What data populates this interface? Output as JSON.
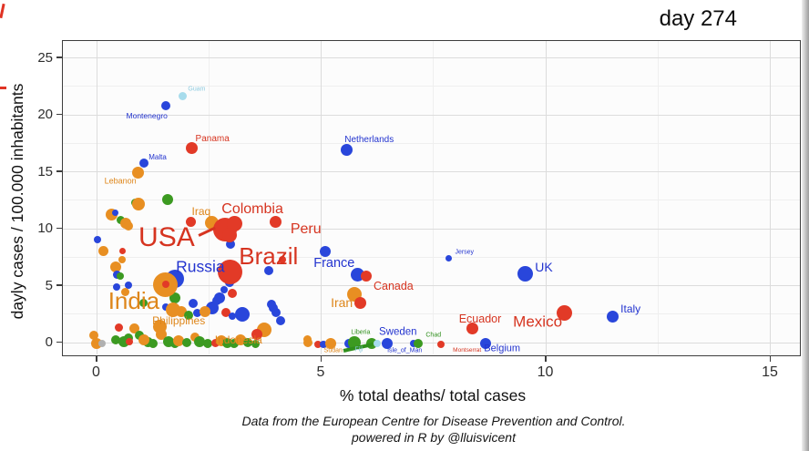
{
  "chart_data": {
    "type": "scatter",
    "title": "day 274",
    "xlabel": "% total deaths/ total cases",
    "ylabel": "dayly cases / 100.000 inhabitants",
    "caption_line1": "Data from the European Centre for Disease Prevention and Control.",
    "caption_line2": "powered in R by @lluisvicent",
    "xticks": [
      0,
      5,
      10,
      15
    ],
    "yticks": [
      0,
      5,
      10,
      15,
      20,
      25
    ],
    "xlim": [
      -0.76,
      15.7
    ],
    "ylim": [
      -1.25,
      26.5
    ],
    "grid": "major and minor, light gray on near-white panel",
    "legend_position": "none",
    "point_palette": {
      "r": "#e23a27",
      "b": "#2946db",
      "o": "#e88f22",
      "g": "#3c9a21",
      "y": "#a7dcec",
      "gy": "#b0b0b0"
    },
    "label_palette": {
      "r": "#d63420",
      "b": "#2334cf",
      "o": "#de861a",
      "g": "#2f8f1c",
      "y": "#8ecbe0",
      "gy": "#999999"
    },
    "named_points": [
      {
        "name": "Guam",
        "x": 1.93,
        "y": 21.6,
        "r": 4.5,
        "c": "y"
      },
      {
        "name": "Montenegro",
        "x": 1.55,
        "y": 20.76,
        "r": 5,
        "c": "b"
      },
      {
        "name": "Panama",
        "x": 2.12,
        "y": 17.08,
        "r": 6.5,
        "c": "r"
      },
      {
        "name": "Netherlands",
        "x": 5.57,
        "y": 16.92,
        "r": 6.5,
        "c": "b"
      },
      {
        "name": "Malta",
        "x": 1.07,
        "y": 15.72,
        "r": 5,
        "c": "b"
      },
      {
        "name": "Lebanon",
        "x": 0.94,
        "y": 14.92,
        "r": 6.5,
        "c": "o"
      },
      {
        "name": "Iraq",
        "x": 2.57,
        "y": 10.52,
        "r": 7.5,
        "c": "o"
      },
      {
        "name": "USA-Colombia-blob-1",
        "x": 2.87,
        "y": 9.88,
        "r": 13,
        "c": "r"
      },
      {
        "name": "USA-Colombia-blob-2",
        "x": 3.09,
        "y": 10.44,
        "r": 8.5,
        "c": "r"
      },
      {
        "name": "USA-Colombia-blob-3",
        "x": 2.98,
        "y": 9.4,
        "r": 8,
        "c": "r"
      },
      {
        "name": "Peru",
        "x": 4.0,
        "y": 10.6,
        "r": 6.5,
        "c": "r"
      },
      {
        "name": "Brazil",
        "x": 2.99,
        "y": 6.2,
        "r": 13.5,
        "c": "r"
      },
      {
        "name": "Russia",
        "x": 1.75,
        "y": 5.56,
        "r": 10,
        "c": "b"
      },
      {
        "name": "India",
        "x": 1.55,
        "y": 5.08,
        "r": 13.5,
        "c": "o"
      },
      {
        "name": "India-red-overlay",
        "x": 1.55,
        "y": 5.05,
        "r": 4,
        "c": "r"
      },
      {
        "name": "France-upper",
        "x": 5.1,
        "y": 7.96,
        "r": 6,
        "c": "b"
      },
      {
        "name": "France",
        "x": 5.83,
        "y": 5.96,
        "r": 7.5,
        "c": "b"
      },
      {
        "name": "Canada",
        "x": 6.01,
        "y": 5.8,
        "r": 6,
        "c": "r"
      },
      {
        "name": "Iran",
        "x": 5.75,
        "y": 4.2,
        "r": 8,
        "c": "o"
      },
      {
        "name": "near-Iran-red",
        "x": 5.89,
        "y": 3.48,
        "r": 6.5,
        "c": "r"
      },
      {
        "name": "Jersey",
        "x": 7.84,
        "y": 7.4,
        "r": 3.5,
        "c": "b"
      },
      {
        "name": "UK",
        "x": 9.56,
        "y": 6.04,
        "r": 8.5,
        "c": "b"
      },
      {
        "name": "Ecuador",
        "x": 8.37,
        "y": 1.24,
        "r": 6.5,
        "c": "r"
      },
      {
        "name": "Mexico",
        "x": 10.43,
        "y": 2.6,
        "r": 8.5,
        "c": "r"
      },
      {
        "name": "Italy",
        "x": 11.51,
        "y": 2.28,
        "r": 6.5,
        "c": "b"
      },
      {
        "name": "Belgium",
        "x": 8.67,
        "y": -0.12,
        "r": 6,
        "c": "b"
      },
      {
        "name": "Sweden",
        "x": 6.48,
        "y": -0.12,
        "r": 6,
        "c": "b"
      }
    ],
    "background_points": [
      [
        0.88,
        12.28,
        4.5,
        "g"
      ],
      [
        0.95,
        12.12,
        7,
        "o"
      ],
      [
        1.6,
        12.52,
        6,
        "g"
      ],
      [
        0.35,
        11.24,
        6.5,
        "o"
      ],
      [
        0.43,
        11.4,
        3.5,
        "b"
      ],
      [
        0.55,
        10.76,
        4.5,
        "g"
      ],
      [
        0.65,
        10.44,
        6,
        "o"
      ],
      [
        0.73,
        10.2,
        5,
        "o"
      ],
      [
        2.1,
        10.6,
        5.5,
        "r"
      ],
      [
        0.03,
        9.0,
        4,
        "b"
      ],
      [
        0.16,
        8.04,
        5.5,
        "o"
      ],
      [
        0.59,
        8.04,
        3.5,
        "r"
      ],
      [
        0.57,
        7.24,
        4,
        "o"
      ],
      [
        0.44,
        6.6,
        6,
        "o"
      ],
      [
        0.46,
        5.96,
        4.5,
        "b"
      ],
      [
        0.53,
        5.8,
        4,
        "g"
      ],
      [
        0.46,
        4.84,
        4,
        "b"
      ],
      [
        0.73,
        5.0,
        4,
        "b"
      ],
      [
        0.65,
        4.44,
        4.5,
        "o"
      ],
      [
        3.0,
        8.6,
        5,
        "b"
      ],
      [
        3.85,
        6.28,
        5,
        "b"
      ],
      [
        4.15,
        7.24,
        4,
        "r"
      ],
      [
        2.84,
        4.6,
        4,
        "b"
      ],
      [
        3.04,
        4.28,
        5,
        "r"
      ],
      [
        2.75,
        3.88,
        6,
        "b"
      ],
      [
        2.97,
        5.24,
        5,
        "b"
      ],
      [
        2.89,
        2.6,
        5,
        "r"
      ],
      [
        3.03,
        2.28,
        4,
        "b"
      ],
      [
        3.26,
        2.44,
        8,
        "b"
      ],
      [
        3.94,
        3.0,
        5,
        "b"
      ],
      [
        4.0,
        2.6,
        5,
        "b"
      ],
      [
        4.1,
        1.88,
        5,
        "b"
      ],
      [
        3.74,
        1.08,
        8,
        "o"
      ],
      [
        3.58,
        0.68,
        6,
        "r"
      ],
      [
        2.59,
        3.0,
        7,
        "b"
      ],
      [
        3.9,
        3.3,
        5,
        "b"
      ],
      [
        1.76,
        3.88,
        6,
        "g"
      ],
      [
        2.16,
        3.4,
        5,
        "b"
      ],
      [
        2.26,
        2.6,
        4.5,
        "b"
      ],
      [
        1.05,
        3.48,
        4.5,
        "g"
      ],
      [
        2.69,
        3.64,
        5,
        "b"
      ],
      [
        2.42,
        2.68,
        6,
        "o"
      ],
      [
        1.56,
        3.08,
        4,
        "b"
      ],
      [
        1.72,
        2.84,
        8,
        "o"
      ],
      [
        1.9,
        2.68,
        6,
        "o"
      ],
      [
        2.06,
        2.36,
        5,
        "g"
      ],
      [
        -0.05,
        0.6,
        5,
        "o"
      ],
      [
        0.0,
        -0.12,
        6,
        "o"
      ],
      [
        0.14,
        -0.12,
        4,
        "gy"
      ],
      [
        0.44,
        0.2,
        5,
        "g"
      ],
      [
        0.61,
        0.04,
        6,
        "g"
      ],
      [
        0.71,
        0.36,
        5,
        "g"
      ],
      [
        0.51,
        1.32,
        4.5,
        "r"
      ],
      [
        0.85,
        1.24,
        5.5,
        "o"
      ],
      [
        0.97,
        0.6,
        5,
        "g"
      ],
      [
        1.41,
        1.4,
        7.5,
        "o"
      ],
      [
        1.45,
        0.68,
        6,
        "o"
      ],
      [
        1.15,
        0.04,
        5.5,
        "g"
      ],
      [
        1.27,
        -0.12,
        5,
        "g"
      ],
      [
        1.07,
        0.2,
        6,
        "o"
      ],
      [
        0.75,
        0.04,
        4,
        "r"
      ],
      [
        1.62,
        0.04,
        6,
        "g"
      ],
      [
        1.76,
        -0.12,
        5,
        "g"
      ],
      [
        1.84,
        0.12,
        6,
        "o"
      ],
      [
        2.02,
        -0.04,
        5,
        "g"
      ],
      [
        2.2,
        0.44,
        5,
        "o"
      ],
      [
        2.3,
        0.04,
        6,
        "g"
      ],
      [
        2.48,
        -0.12,
        5,
        "g"
      ],
      [
        2.65,
        -0.04,
        4.5,
        "r"
      ],
      [
        2.79,
        0.12,
        6,
        "o"
      ],
      [
        2.93,
        -0.04,
        5.5,
        "g"
      ],
      [
        3.07,
        -0.12,
        5,
        "g"
      ],
      [
        3.21,
        0.2,
        6,
        "o"
      ],
      [
        3.37,
        -0.04,
        5,
        "g"
      ],
      [
        3.54,
        -0.12,
        4.5,
        "g"
      ],
      [
        4.71,
        0.28,
        4.5,
        "o"
      ],
      [
        4.72,
        -0.04,
        5,
        "o"
      ],
      [
        4.94,
        -0.2,
        4,
        "r"
      ],
      [
        5.06,
        -0.2,
        4,
        "b"
      ],
      [
        5.22,
        -0.12,
        6,
        "o"
      ],
      [
        5.63,
        -0.12,
        5,
        "b"
      ],
      [
        5.75,
        -0.04,
        7,
        "g"
      ],
      [
        6.13,
        -0.12,
        6,
        "g"
      ],
      [
        6.26,
        -0.12,
        4,
        "y"
      ],
      [
        7.06,
        -0.12,
        4,
        "b"
      ],
      [
        7.17,
        -0.12,
        5,
        "g"
      ],
      [
        7.68,
        -0.2,
        4,
        "r"
      ]
    ],
    "country_labels": [
      {
        "t": "USA",
        "x": 1.57,
        "y": 9.16,
        "s": 30,
        "c": "r"
      },
      {
        "t": "Brazil",
        "x": 3.84,
        "y": 7.56,
        "s": 26,
        "c": "r"
      },
      {
        "t": "India",
        "x": 0.84,
        "y": 3.64,
        "s": 26,
        "c": "o"
      },
      {
        "t": "Russia",
        "x": 2.32,
        "y": 6.64,
        "s": 17.5,
        "c": "b"
      },
      {
        "t": "Colombia",
        "x": 3.48,
        "y": 11.64,
        "s": 16,
        "c": "r"
      },
      {
        "t": "Peru",
        "x": 4.67,
        "y": 9.88,
        "s": 16,
        "c": "r"
      },
      {
        "t": "France",
        "x": 5.3,
        "y": 6.92,
        "s": 14.5,
        "c": "b"
      },
      {
        "t": "Iran",
        "x": 5.47,
        "y": 3.48,
        "s": 14,
        "c": "o"
      },
      {
        "t": "Canada",
        "x": 6.62,
        "y": 4.92,
        "s": 12.5,
        "c": "r"
      },
      {
        "t": "UK",
        "x": 9.97,
        "y": 6.6,
        "s": 14,
        "c": "b"
      },
      {
        "t": "Italy",
        "x": 11.9,
        "y": 2.92,
        "s": 12,
        "c": "b"
      },
      {
        "t": "Mexico",
        "x": 9.83,
        "y": 1.8,
        "s": 17,
        "c": "r"
      },
      {
        "t": "Ecuador",
        "x": 8.55,
        "y": 2.04,
        "s": 12.5,
        "c": "r"
      },
      {
        "t": "Belgium",
        "x": 9.04,
        "y": -0.6,
        "s": 11,
        "c": "b"
      },
      {
        "t": "Sweden",
        "x": 6.72,
        "y": 0.84,
        "s": 11.5,
        "c": "b"
      },
      {
        "t": "Netherlands",
        "x": 6.08,
        "y": 17.72,
        "s": 10,
        "c": "b"
      },
      {
        "t": "Panama",
        "x": 2.59,
        "y": 17.8,
        "s": 10,
        "c": "r"
      },
      {
        "t": "Iraq",
        "x": 2.34,
        "y": 11.48,
        "s": 12,
        "c": "o"
      },
      {
        "t": "Montenegro",
        "x": 1.13,
        "y": 19.88,
        "s": 8.5,
        "c": "b"
      },
      {
        "t": "Malta",
        "x": 1.37,
        "y": 16.2,
        "s": 8,
        "c": "b"
      },
      {
        "t": "Lebanon",
        "x": 0.54,
        "y": 14.12,
        "s": 9,
        "c": "o"
      },
      {
        "t": "Philippines",
        "x": 1.84,
        "y": 1.88,
        "s": 12,
        "c": "o"
      },
      {
        "t": "Indonesia",
        "x": 3.17,
        "y": 0.2,
        "s": 12,
        "c": "o"
      },
      {
        "t": "Jersey",
        "x": 8.2,
        "y": 7.88,
        "s": 7,
        "c": "b"
      },
      {
        "t": "Liberia",
        "x": 5.89,
        "y": 0.84,
        "s": 7,
        "c": "g"
      },
      {
        "t": "Chad",
        "x": 7.51,
        "y": 0.6,
        "s": 7,
        "c": "g"
      },
      {
        "t": "Sudan",
        "x": 5.28,
        "y": -0.76,
        "s": 7,
        "c": "o"
      },
      {
        "t": "Fiji",
        "x": 5.85,
        "y": -0.68,
        "s": 7,
        "c": "y"
      },
      {
        "t": "Montserrat",
        "x": 8.26,
        "y": -0.76,
        "s": 6.5,
        "c": "r"
      },
      {
        "t": "Isle_of_Man",
        "x": 6.87,
        "y": -0.76,
        "s": 7,
        "c": "b"
      },
      {
        "t": "Guam",
        "x": 2.24,
        "y": 22.2,
        "s": 7,
        "c": "y"
      }
    ],
    "annotations": {
      "usa_leader_line": {
        "x1": 2.28,
        "y1": 9.4,
        "x2": 2.65,
        "y2": 10.08,
        "w": 2.5,
        "c": "r"
      },
      "green_trail": {
        "x1": 5.51,
        "y1": -0.72,
        "x2": 6.16,
        "y2": -0.16,
        "w": 3.5,
        "c": "g"
      }
    }
  }
}
